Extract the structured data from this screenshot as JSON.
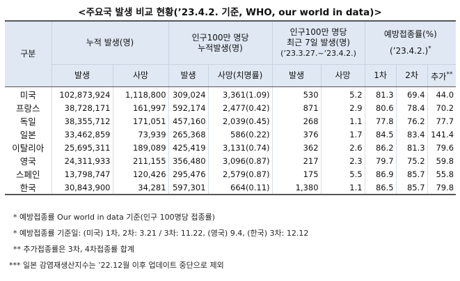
{
  "title": "<주요국 발생 비교 현황(’23.4.2. 기준, WHO, our world in data)>",
  "headers": {
    "gubun": "구분",
    "cumulative": "누적 발생(명)",
    "per_million_line1": "인구100만 명당",
    "per_million_line2": "누적발생(명)",
    "recent_line1": "인구100만 명당",
    "recent_line2": "최근 7일 발생(명)",
    "recent_line3": "(’23.3.27.~’23.4.2.)",
    "vaccine_line1": "예방접종률(%)",
    "vaccine_line2": "(’23.4.2.)",
    "vaccine_mark": "*",
    "sub": {
      "cases": "발생",
      "deaths": "사망",
      "pm_cases": "발생",
      "pm_deaths": "사망(치명률)",
      "recent_cases": "발생",
      "recent_deaths": "사망",
      "dose1": "1차",
      "dose2": "2차",
      "booster": "추가",
      "booster_mark": "**"
    }
  },
  "rows": [
    {
      "country": "미국",
      "cases": "102,873,924",
      "deaths": "1,118,800",
      "pm_cases": "309,024",
      "pm_deaths": "3,361(1.09)",
      "recent_cases": "530",
      "recent_deaths": "5.2",
      "dose1": "81.3",
      "dose2": "69.4",
      "booster": "44.0"
    },
    {
      "country": "프랑스",
      "cases": "38,728,171",
      "deaths": "161,997",
      "pm_cases": "592,174",
      "pm_deaths": "2,477(0.42)",
      "recent_cases": "871",
      "recent_deaths": "2.9",
      "dose1": "80.6",
      "dose2": "78.4",
      "booster": "70.2"
    },
    {
      "country": "독일",
      "cases": "38,355,712",
      "deaths": "171,051",
      "pm_cases": "457,160",
      "pm_deaths": "2,039(0.45)",
      "recent_cases": "268",
      "recent_deaths": "1.1",
      "dose1": "77.8",
      "dose2": "76.2",
      "booster": "77.7"
    },
    {
      "country": "일본",
      "cases": "33,462,859",
      "deaths": "73,939",
      "pm_cases": "265,368",
      "pm_deaths": "586(0.22)",
      "recent_cases": "376",
      "recent_deaths": "1.7",
      "dose1": "84.5",
      "dose2": "83.4",
      "booster": "141.4"
    },
    {
      "country": "이탈리아",
      "cases": "25,695,311",
      "deaths": "189,089",
      "pm_cases": "425,419",
      "pm_deaths": "3,131(0.74)",
      "recent_cases": "362",
      "recent_deaths": "2.6",
      "dose1": "86.2",
      "dose2": "81.3",
      "booster": "79.6"
    },
    {
      "country": "영국",
      "cases": "24,311,933",
      "deaths": "211,155",
      "pm_cases": "356,480",
      "pm_deaths": "3,096(0.87)",
      "recent_cases": "217",
      "recent_deaths": "2.3",
      "dose1": "79.7",
      "dose2": "75.2",
      "booster": "59.8"
    },
    {
      "country": "스페인",
      "cases": "13,798,747",
      "deaths": "120,426",
      "pm_cases": "295,476",
      "pm_deaths": "2,579(0.87)",
      "recent_cases": "175",
      "recent_deaths": "5.5",
      "dose1": "86.9",
      "dose2": "85.7",
      "booster": "55.8"
    },
    {
      "country": "한국",
      "cases": "30,843,900",
      "deaths": "34,281",
      "pm_cases": "597,301",
      "pm_deaths": "664(0.11)",
      "recent_cases": "1,380",
      "recent_deaths": "1.1",
      "dose1": "86.5",
      "dose2": "85.7",
      "booster": "79.8"
    }
  ],
  "notes": [
    "* 예방접종률 Our world in data 기준(인구 100명당 접종률)",
    "* 예방접종률 기준일: (미국) 1차, 2차: 3.21 / 3차: 11.22, (영국) 9.4, (한국) 3차: 12.12",
    "** 추가접종률은 3차, 4차접종률 합계",
    "*** 일본 감염재생산지수는 ’22.12월 이후 업데이트 중단으로 제외"
  ]
}
